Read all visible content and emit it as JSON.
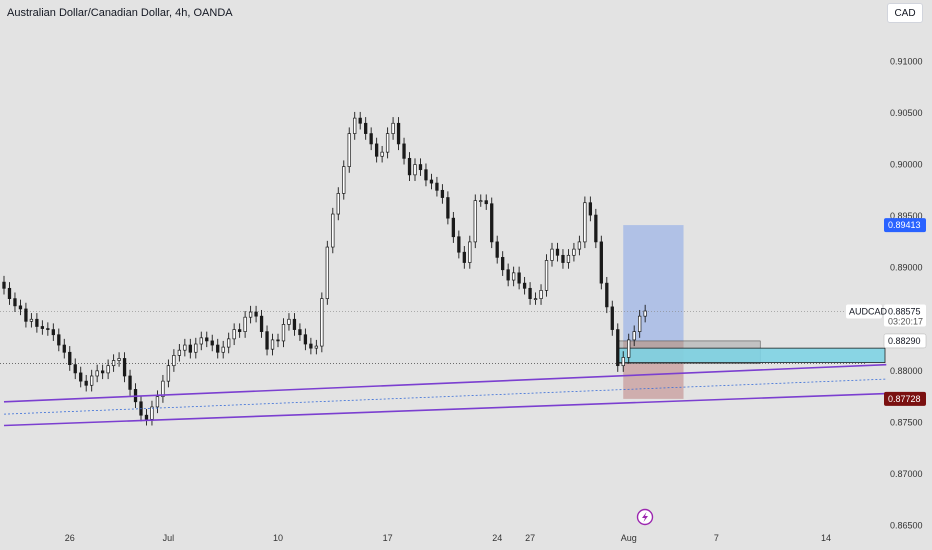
{
  "header": {
    "title": "Australian Dollar/Canadian Dollar, 4h, OANDA",
    "currency": "CAD"
  },
  "colors": {
    "background": "#e3e3e3",
    "candle": "#1a1a1a",
    "channel": "#7b3fd0",
    "midline": "#3a6ed8",
    "long_profit": "#8eaae8",
    "long_stop": "#c28b8b",
    "zone": "#7ed3e3",
    "grey_box": "#9a9a9a",
    "price_blue": "#2962ff",
    "price_red": "#7a1010"
  },
  "icons": {
    "event_marker": "lightning-icon"
  },
  "chart_data": {
    "type": "candlestick",
    "symbol": "AUDCAD",
    "y_ticks": [
      0.865,
      0.87,
      0.875,
      0.88,
      0.885,
      0.89,
      0.895,
      0.9,
      0.905,
      0.91
    ],
    "y_tick_labels": [
      "0.86500",
      "0.87000",
      "0.87500",
      "0.88000",
      "0.88500",
      "0.89000",
      "0.89500",
      "0.90000",
      "0.90500",
      "0.91000"
    ],
    "ylim": [
      0.8636,
      0.9144
    ],
    "x_ticks": [
      {
        "label": "26",
        "i": 12
      },
      {
        "label": "Jul",
        "i": 30
      },
      {
        "label": "10",
        "i": 50
      },
      {
        "label": "17",
        "i": 70
      },
      {
        "label": "24",
        "i": 90
      },
      {
        "label": "27",
        "i": 96
      },
      {
        "label": "Aug",
        "i": 114
      },
      {
        "label": "7",
        "i": 130
      },
      {
        "label": "14",
        "i": 150
      }
    ],
    "closes": [
      0.888,
      0.887,
      0.8863,
      0.886,
      0.8848,
      0.885,
      0.8843,
      0.8841,
      0.884,
      0.8835,
      0.8825,
      0.8818,
      0.8806,
      0.8798,
      0.879,
      0.8786,
      0.8795,
      0.88,
      0.8798,
      0.8805,
      0.881,
      0.8812,
      0.8795,
      0.8782,
      0.877,
      0.8757,
      0.8753,
      0.8765,
      0.8775,
      0.879,
      0.8805,
      0.8815,
      0.882,
      0.8825,
      0.8818,
      0.8826,
      0.8832,
      0.8829,
      0.8825,
      0.8818,
      0.8823,
      0.8831,
      0.884,
      0.8838,
      0.8852,
      0.8857,
      0.8853,
      0.8838,
      0.8821,
      0.883,
      0.8829,
      0.8845,
      0.885,
      0.884,
      0.8835,
      0.8826,
      0.8822,
      0.8824,
      0.887,
      0.892,
      0.8952,
      0.8972,
      0.8998,
      0.903,
      0.9045,
      0.904,
      0.903,
      0.902,
      0.9008,
      0.9012,
      0.903,
      0.904,
      0.902,
      0.9006,
      0.899,
      0.9,
      0.8995,
      0.8985,
      0.8982,
      0.8975,
      0.8968,
      0.8948,
      0.893,
      0.8915,
      0.8905,
      0.8925,
      0.8965,
      0.8965,
      0.8962,
      0.8925,
      0.891,
      0.8898,
      0.8888,
      0.8895,
      0.8885,
      0.888,
      0.887,
      0.887,
      0.8878,
      0.8907,
      0.8918,
      0.8912,
      0.8905,
      0.8912,
      0.8918,
      0.8925,
      0.8963,
      0.8951,
      0.8925,
      0.8885,
      0.8862,
      0.884,
      0.8805,
      0.8813,
      0.883,
      0.8838,
      0.8853,
      0.8858
    ],
    "price_labels": {
      "target": {
        "value": 0.89413,
        "text": "0.89413"
      },
      "current": {
        "value": 0.88575,
        "text": "0.88575",
        "symbol": "AUDCAD",
        "countdown": "03:20:17"
      },
      "level": {
        "value": 0.8829,
        "text": "0.88290"
      },
      "stop": {
        "value": 0.87728,
        "text": "0.87728"
      }
    },
    "long_position": {
      "entry": 0.8829,
      "target": 0.89413,
      "stop": 0.87728,
      "start_i": 113,
      "end_i": 124
    },
    "grey_zone": {
      "top": 0.8829,
      "bottom": 0.8807,
      "start_i": 112,
      "end_i": 138
    },
    "teal_zone": {
      "top": 0.8822,
      "bottom": 0.8808,
      "start_i": 112,
      "end_i": 161
    },
    "dotted_level": 0.8807,
    "channel_upper": [
      {
        "i": 0,
        "v": 0.877
      },
      {
        "i": 161,
        "v": 0.8806
      }
    ],
    "channel_lower": [
      {
        "i": 0,
        "v": 0.8747
      },
      {
        "i": 161,
        "v": 0.8778
      }
    ],
    "channel_mid": [
      {
        "i": 0,
        "v": 0.8758
      },
      {
        "i": 161,
        "v": 0.8792
      }
    ]
  }
}
